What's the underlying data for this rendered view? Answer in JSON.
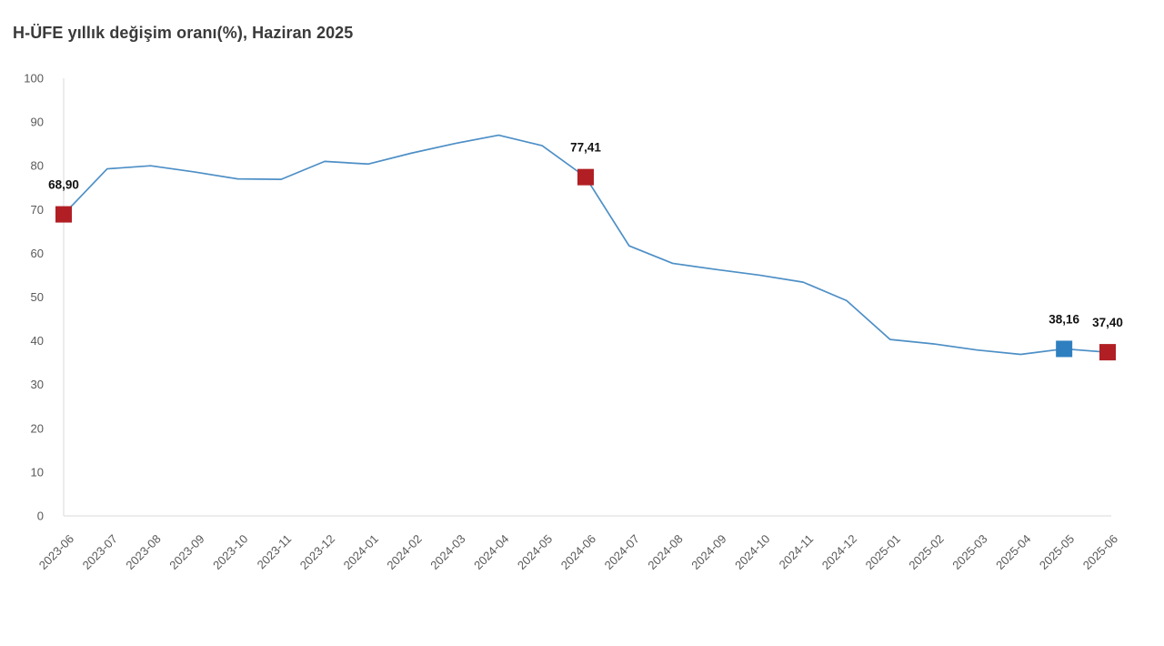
{
  "title": "H-ÜFE yıllık değişim oranı(%), Haziran 2025",
  "colors": {
    "line": "#4d8fc6",
    "marker_red": "#b11f24",
    "marker_blue": "#2e7fc0",
    "axis": "#d9d9d9",
    "tick_text": "#595959",
    "label_text": "#111111",
    "title_text": "#3a3a3a"
  },
  "chart_data": {
    "type": "line",
    "title": "H-ÜFE yıllık değişim oranı(%), Haziran 2025",
    "xlabel": "",
    "ylabel": "",
    "ylim": [
      0,
      100
    ],
    "ytick_step": 10,
    "grid": false,
    "legend": false,
    "x": [
      "2023-06",
      "2023-07",
      "2023-08",
      "2023-09",
      "2023-10",
      "2023-11",
      "2023-12",
      "2024-01",
      "2024-02",
      "2024-03",
      "2024-04",
      "2024-05",
      "2024-06",
      "2024-07",
      "2024-08",
      "2024-09",
      "2024-10",
      "2024-11",
      "2024-12",
      "2025-01",
      "2025-02",
      "2025-03",
      "2025-04",
      "2025-05",
      "2025-06"
    ],
    "values": [
      68.9,
      79.3,
      80.0,
      78.6,
      77.0,
      76.9,
      81.0,
      80.4,
      82.9,
      85.1,
      87.0,
      84.6,
      77.41,
      61.7,
      57.7,
      56.3,
      55.0,
      53.4,
      49.2,
      40.3,
      39.3,
      37.9,
      36.9,
      38.16,
      37.4
    ],
    "highlighted_points": [
      {
        "x": "2023-06",
        "value": 68.9,
        "label": "68,90",
        "marker": "red"
      },
      {
        "x": "2024-06",
        "value": 77.41,
        "label": "77,41",
        "marker": "red"
      },
      {
        "x": "2025-05",
        "value": 38.16,
        "label": "38,16",
        "marker": "blue"
      },
      {
        "x": "2025-06",
        "value": 37.4,
        "label": "37,40",
        "marker": "red"
      }
    ]
  }
}
